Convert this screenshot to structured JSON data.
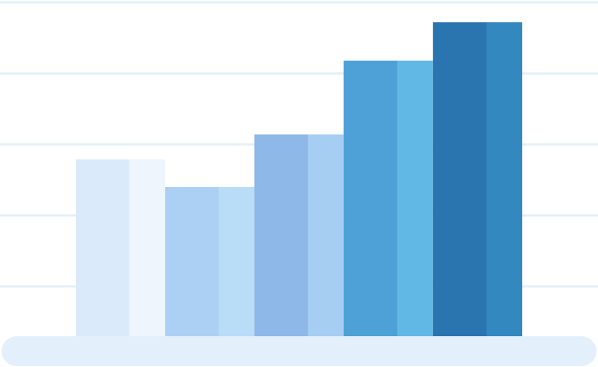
{
  "chart_data": {
    "type": "bar",
    "categories": [
      null,
      null,
      null,
      null,
      null
    ],
    "values": [
      2.49,
      2.1,
      2.84,
      3.88,
      4.42
    ],
    "colors": [
      [
        "#dbeafa",
        "#eef5fd"
      ],
      [
        "#acd0f4",
        "#b9dcf7"
      ],
      [
        "#8db8e8",
        "#a6cdf2"
      ],
      [
        "#4ea1d6",
        "#62b8e5"
      ],
      [
        "#2a74b0",
        "#3388c0"
      ]
    ],
    "ylim": [
      0,
      4.7
    ],
    "yticks": [
      0.7,
      1.7,
      2.7,
      3.7,
      4.7
    ],
    "grid": true
  }
}
